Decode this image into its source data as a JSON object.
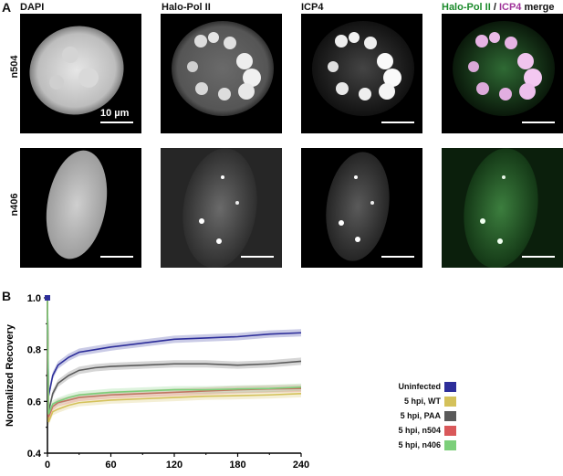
{
  "figure": {
    "panel_a_label": "A",
    "panel_b_label": "B",
    "columns": [
      {
        "id": "dapi",
        "label": "DAPI"
      },
      {
        "id": "halo",
        "label": "Halo-Pol II"
      },
      {
        "id": "icp4",
        "label": "ICP4"
      },
      {
        "id": "merge",
        "label_part1": "Halo-Pol II",
        "label_sep": " / ",
        "label_part2": "ICP4",
        "label_part3": " merge"
      }
    ],
    "rows": [
      {
        "id": "n504",
        "label": "n504"
      },
      {
        "id": "n406",
        "label": "n406"
      }
    ],
    "scale_bar_label": "10 µm",
    "colors": {
      "green_channel": "#1a8a2a",
      "magenta_channel": "#a0349a"
    }
  },
  "chart_data": {
    "type": "line",
    "ylabel": "Normalized Recovery",
    "xlabel": "",
    "xlim": [
      0,
      240
    ],
    "ylim": [
      0.4,
      1.0
    ],
    "xticks": [
      0,
      60,
      120,
      180,
      240
    ],
    "yticks": [
      0.4,
      0.6,
      0.8,
      1.0
    ],
    "legend_position": "right",
    "x": [
      0,
      1,
      5,
      10,
      20,
      30,
      45,
      60,
      90,
      120,
      150,
      180,
      210,
      240
    ],
    "series": [
      {
        "name": "Uninfected",
        "color": "#2d2e9a",
        "values": [
          1.0,
          0.62,
          0.7,
          0.74,
          0.77,
          0.79,
          0.8,
          0.81,
          0.825,
          0.84,
          0.845,
          0.85,
          0.86,
          0.865
        ]
      },
      {
        "name": "5 hpi, WT",
        "color": "#d4c15a",
        "values": [
          1.0,
          0.52,
          0.56,
          0.57,
          0.585,
          0.595,
          0.6,
          0.605,
          0.61,
          0.615,
          0.62,
          0.622,
          0.625,
          0.63
        ]
      },
      {
        "name": "5 hpi, PAA",
        "color": "#5a5a5a",
        "values": [
          1.0,
          0.56,
          0.63,
          0.67,
          0.7,
          0.72,
          0.73,
          0.735,
          0.74,
          0.745,
          0.745,
          0.74,
          0.745,
          0.755
        ]
      },
      {
        "name": "5 hpi, n504",
        "color": "#d9585a",
        "values": [
          1.0,
          0.54,
          0.58,
          0.595,
          0.605,
          0.615,
          0.62,
          0.625,
          0.63,
          0.635,
          0.64,
          0.645,
          0.648,
          0.65
        ]
      },
      {
        "name": "5 hpi, n406",
        "color": "#7ccf7a",
        "values": [
          1.0,
          0.55,
          0.59,
          0.6,
          0.615,
          0.625,
          0.63,
          0.635,
          0.64,
          0.645,
          0.645,
          0.648,
          0.65,
          0.655
        ]
      }
    ]
  }
}
